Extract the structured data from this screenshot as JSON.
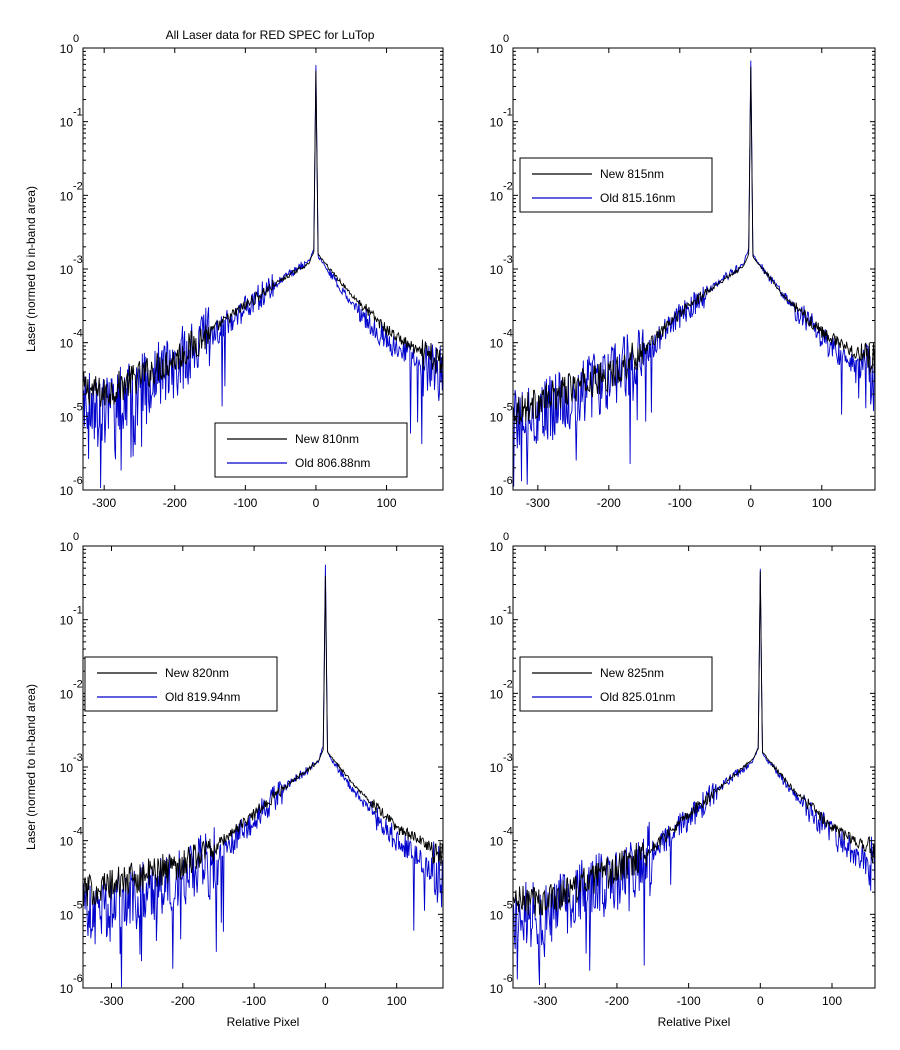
{
  "figure": {
    "title": "All Laser data for RED SPEC for LuTop",
    "background": "#ffffff"
  },
  "colors": {
    "new": "#000000",
    "old": "#0000cc",
    "axis": "#000000"
  },
  "chart_data": [
    {
      "type": "line",
      "scale": "log-y",
      "title": "All Laser data for RED SPEC for LuTop",
      "xlabel": "",
      "ylabel": "Laser (normed to in-band area)",
      "xlim": [
        -330,
        180
      ],
      "ylim": [
        1e-06,
        1
      ],
      "xticks": [
        -300,
        -200,
        -100,
        0,
        100
      ],
      "yticks": [
        -6,
        -5,
        -4,
        -3,
        -2,
        -1,
        0
      ],
      "legend_position": "bottom-right",
      "series": [
        {
          "name": "New 810nm",
          "color": "#000000",
          "points": [
            [
              -330,
              2.5e-05
            ],
            [
              -300,
              2e-05
            ],
            [
              -250,
              3.5e-05
            ],
            [
              -200,
              6e-05
            ],
            [
              -150,
              0.00014
            ],
            [
              -100,
              0.00032
            ],
            [
              -50,
              0.0007
            ],
            [
              -10,
              0.0012
            ],
            [
              -3,
              0.0017
            ],
            [
              0,
              0.5
            ],
            [
              3,
              0.0016
            ],
            [
              10,
              0.0013
            ],
            [
              50,
              0.00045
            ],
            [
              100,
              0.00015
            ],
            [
              150,
              7e-05
            ],
            [
              180,
              5e-05
            ]
          ]
        },
        {
          "name": "Old 806.88nm",
          "color": "#0000cc",
          "points": [
            [
              -330,
              1.5e-05
            ],
            [
              -300,
              1.2e-05
            ],
            [
              -250,
              2.5e-05
            ],
            [
              -200,
              5e-05
            ],
            [
              -150,
              0.00012
            ],
            [
              -100,
              0.0003
            ],
            [
              -50,
              0.0007
            ],
            [
              -10,
              0.0013
            ],
            [
              -3,
              0.0018
            ],
            [
              0,
              0.6
            ],
            [
              3,
              0.0015
            ],
            [
              10,
              0.0012
            ],
            [
              50,
              0.00035
            ],
            [
              100,
              0.00011
            ],
            [
              150,
              5e-05
            ],
            [
              180,
              4e-05
            ]
          ]
        }
      ]
    },
    {
      "type": "line",
      "scale": "log-y",
      "title": "",
      "xlabel": "",
      "ylabel": "",
      "xlim": [
        -335,
        175
      ],
      "ylim": [
        1e-06,
        1
      ],
      "xticks": [
        -300,
        -200,
        -100,
        0,
        100
      ],
      "yticks": [
        -6,
        -5,
        -4,
        -3,
        -2,
        -1,
        0
      ],
      "legend_position": "top-left",
      "series": [
        {
          "name": "New 815nm",
          "color": "#000000",
          "points": [
            [
              -335,
              1.2e-05
            ],
            [
              -300,
              1.5e-05
            ],
            [
              -250,
              2.5e-05
            ],
            [
              -200,
              3.5e-05
            ],
            [
              -150,
              8e-05
            ],
            [
              -100,
              0.00025
            ],
            [
              -50,
              0.0006
            ],
            [
              -10,
              0.0011
            ],
            [
              -3,
              0.0016
            ],
            [
              0,
              0.55
            ],
            [
              3,
              0.0015
            ],
            [
              10,
              0.0012
            ],
            [
              50,
              0.0004
            ],
            [
              100,
              0.00014
            ],
            [
              150,
              7e-05
            ],
            [
              175,
              6e-05
            ]
          ]
        },
        {
          "name": "Old 815.16nm",
          "color": "#0000cc",
          "points": [
            [
              -335,
              1e-05
            ],
            [
              -300,
              1e-05
            ],
            [
              -250,
              2e-05
            ],
            [
              -200,
              3e-05
            ],
            [
              -150,
              7e-05
            ],
            [
              -100,
              0.00023
            ],
            [
              -50,
              0.0006
            ],
            [
              -10,
              0.0012
            ],
            [
              -3,
              0.0019
            ],
            [
              0,
              0.7
            ],
            [
              3,
              0.0016
            ],
            [
              10,
              0.0012
            ],
            [
              50,
              0.0004
            ],
            [
              100,
              0.00012
            ],
            [
              150,
              4e-05
            ],
            [
              175,
              3e-05
            ]
          ]
        }
      ]
    },
    {
      "type": "line",
      "scale": "log-y",
      "title": "",
      "xlabel": "Relative Pixel",
      "ylabel": "Laser (normed to in-band area)",
      "xlim": [
        -340,
        165
      ],
      "ylim": [
        1e-06,
        1
      ],
      "xticks": [
        -300,
        -200,
        -100,
        0,
        100
      ],
      "yticks": [
        -6,
        -5,
        -4,
        -3,
        -2,
        -1,
        0
      ],
      "legend_position": "top-left",
      "series": [
        {
          "name": "New 820nm",
          "color": "#000000",
          "points": [
            [
              -340,
              2e-05
            ],
            [
              -300,
              2.5e-05
            ],
            [
              -250,
              3.5e-05
            ],
            [
              -200,
              5e-05
            ],
            [
              -150,
              9e-05
            ],
            [
              -100,
              0.00023
            ],
            [
              -50,
              0.0006
            ],
            [
              -10,
              0.0012
            ],
            [
              -3,
              0.0017
            ],
            [
              0,
              0.4
            ],
            [
              3,
              0.0016
            ],
            [
              10,
              0.0013
            ],
            [
              50,
              0.00045
            ],
            [
              100,
              0.00015
            ],
            [
              150,
              8e-05
            ],
            [
              165,
              7e-05
            ]
          ]
        },
        {
          "name": "Old 819.94nm",
          "color": "#0000cc",
          "points": [
            [
              -340,
              1e-05
            ],
            [
              -300,
              1.2e-05
            ],
            [
              -250,
              2e-05
            ],
            [
              -200,
              3e-05
            ],
            [
              -150,
              6e-05
            ],
            [
              -100,
              0.0002
            ],
            [
              -50,
              0.0006
            ],
            [
              -10,
              0.0012
            ],
            [
              -3,
              0.0019
            ],
            [
              0,
              0.55
            ],
            [
              3,
              0.0016
            ],
            [
              10,
              0.0012
            ],
            [
              50,
              0.00035
            ],
            [
              100,
              0.0001
            ],
            [
              150,
              4e-05
            ],
            [
              165,
              3e-05
            ]
          ]
        }
      ]
    },
    {
      "type": "line",
      "scale": "log-y",
      "title": "",
      "xlabel": "Relative Pixel",
      "ylabel": "",
      "xlim": [
        -345,
        160
      ],
      "ylim": [
        1e-06,
        1
      ],
      "xticks": [
        -300,
        -200,
        -100,
        0,
        100
      ],
      "yticks": [
        -6,
        -5,
        -4,
        -3,
        -2,
        -1,
        0
      ],
      "legend_position": "top-left",
      "series": [
        {
          "name": "New 825nm",
          "color": "#000000",
          "points": [
            [
              -345,
              1.5e-05
            ],
            [
              -300,
              1.5e-05
            ],
            [
              -250,
              2.5e-05
            ],
            [
              -200,
              4e-05
            ],
            [
              -150,
              8e-05
            ],
            [
              -100,
              0.00022
            ],
            [
              -50,
              0.0006
            ],
            [
              -10,
              0.0013
            ],
            [
              -3,
              0.0018
            ],
            [
              0,
              0.45
            ],
            [
              3,
              0.0016
            ],
            [
              10,
              0.0013
            ],
            [
              50,
              0.00045
            ],
            [
              100,
              0.00015
            ],
            [
              150,
              8e-05
            ],
            [
              160,
              7e-05
            ]
          ]
        },
        {
          "name": "Old 825.01nm",
          "color": "#0000cc",
          "points": [
            [
              -345,
              1e-05
            ],
            [
              -300,
              1e-05
            ],
            [
              -250,
              2e-05
            ],
            [
              -200,
              3e-05
            ],
            [
              -150,
              7e-05
            ],
            [
              -100,
              0.0002
            ],
            [
              -50,
              0.0006
            ],
            [
              -10,
              0.0012
            ],
            [
              -3,
              0.0018
            ],
            [
              0,
              0.5
            ],
            [
              3,
              0.0015
            ],
            [
              10,
              0.0012
            ],
            [
              50,
              0.0004
            ],
            [
              100,
              0.00012
            ],
            [
              150,
              5e-05
            ],
            [
              160,
              4e-05
            ]
          ]
        }
      ]
    }
  ]
}
